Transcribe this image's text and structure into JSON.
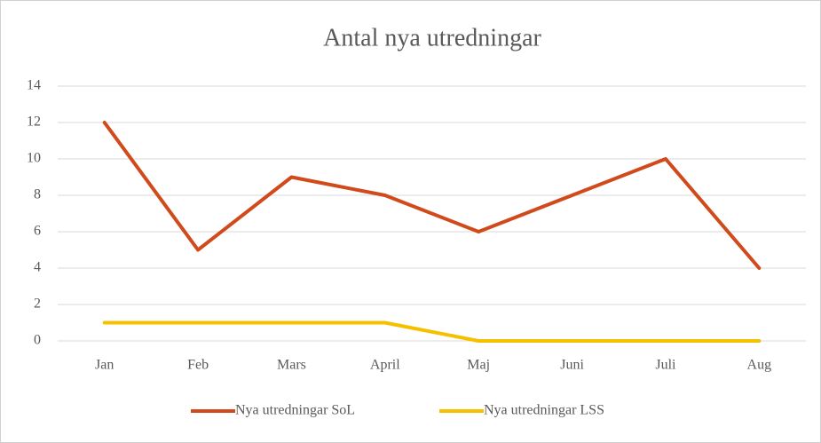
{
  "chart_data": {
    "type": "line",
    "title": "Antal nya utredningar",
    "categories": [
      "Jan",
      "Feb",
      "Mars",
      "April",
      "Maj",
      "Juni",
      "Juli",
      "Aug"
    ],
    "series": [
      {
        "name": "Nya utredningar SoL",
        "color": "#d04a1c",
        "values": [
          12,
          5,
          9,
          8,
          6,
          8,
          10,
          4
        ]
      },
      {
        "name": "Nya utredningar LSS",
        "color": "#f5c000",
        "values": [
          1,
          1,
          1,
          1,
          0,
          0,
          0,
          0
        ]
      }
    ],
    "ylim": [
      0,
      14
    ],
    "yticks": [
      0,
      2,
      4,
      6,
      8,
      10,
      12,
      14
    ],
    "grid": true,
    "legend": "bottom"
  }
}
